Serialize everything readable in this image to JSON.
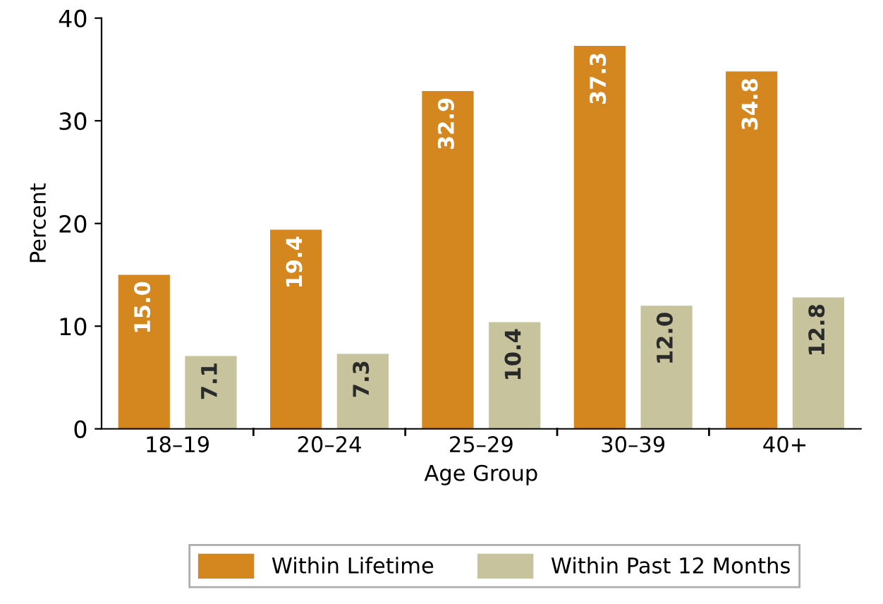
{
  "chart_data": {
    "type": "bar",
    "xlabel": "Age Group",
    "ylabel": "Percent",
    "categories": [
      "18–19",
      "20–24",
      "25–29",
      "30–39",
      "40+"
    ],
    "series": [
      {
        "name": "Within Lifetime",
        "color": "#d4871e",
        "values": [
          15.0,
          19.4,
          32.9,
          37.3,
          34.8
        ],
        "value_labels": [
          "15.0",
          "19.4",
          "32.9",
          "37.3",
          "34.8"
        ]
      },
      {
        "name": "Within Past 12 Months",
        "color": "#c6c39d",
        "values": [
          7.1,
          7.3,
          10.4,
          12.0,
          12.8
        ],
        "value_labels": [
          "7.1",
          "7.3",
          "10.4",
          "12.0",
          "12.8"
        ]
      }
    ],
    "ylim": [
      0,
      40
    ],
    "yticks": [
      0,
      10,
      20,
      30,
      40
    ],
    "grid": false,
    "legend": "bottom"
  }
}
